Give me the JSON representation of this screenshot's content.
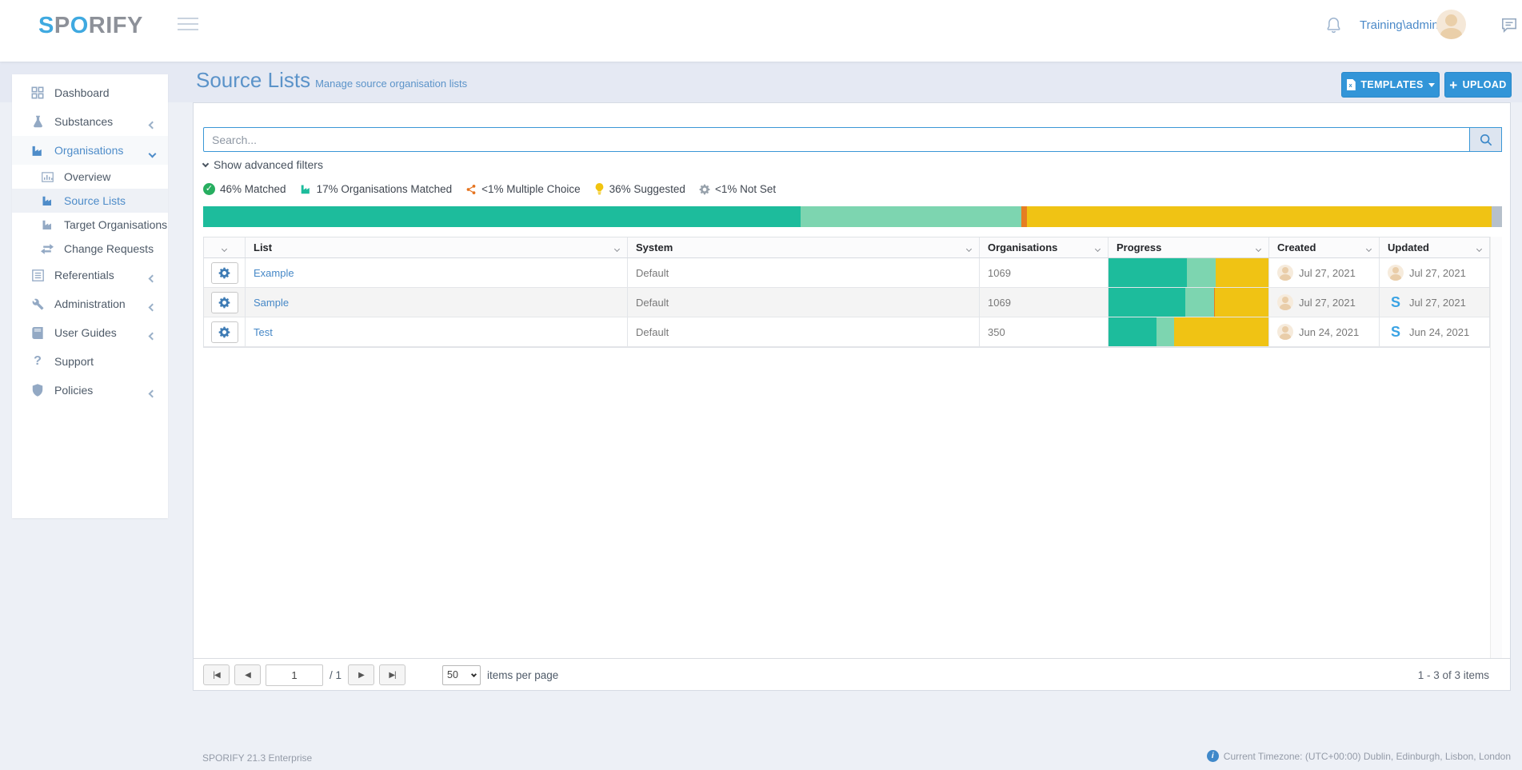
{
  "colors": {
    "accent_blue": "#3295d8",
    "link_blue": "#4a89c8",
    "matched_teal": "#1dbc9c",
    "orgs_matched_green": "#7dd5b0",
    "multiple_choice_orange": "#e67e22",
    "suggested_yellow": "#f0c314",
    "not_set_gray": "#b6c0cb"
  },
  "topbar": {
    "logo_s": "S",
    "logo_p": "P",
    "logo_o": "O",
    "logo_rest": "RIFY",
    "username": "Training\\admin"
  },
  "sidebar": {
    "items": [
      {
        "label": "Dashboard"
      },
      {
        "label": "Substances"
      },
      {
        "label": "Organisations"
      },
      {
        "label": "Overview"
      },
      {
        "label": "Source Lists"
      },
      {
        "label": "Target Organisations"
      },
      {
        "label": "Change Requests"
      },
      {
        "label": "Referentials"
      },
      {
        "label": "Administration"
      },
      {
        "label": "User Guides"
      },
      {
        "label": "Support"
      },
      {
        "label": "Policies"
      }
    ]
  },
  "page": {
    "title": "Source Lists",
    "subtitle": "Manage source organisation lists",
    "templates_button": "TEMPLATES",
    "upload_button": "UPLOAD",
    "upload_plus": "+"
  },
  "search": {
    "placeholder": "Search..."
  },
  "filters_toggle_label": "Show advanced filters",
  "stats": [
    {
      "icon": "check-circle-icon",
      "label": "46% Matched"
    },
    {
      "icon": "factory-icon",
      "label": "17% Organisations Matched"
    },
    {
      "icon": "share-icon",
      "label": "<1% Multiple Choice"
    },
    {
      "icon": "lightbulb-icon",
      "label": "36% Suggested"
    },
    {
      "icon": "gear-icon",
      "label": "<1% Not Set"
    }
  ],
  "summary_bar": {
    "segments": [
      {
        "name": "matched",
        "pct": 46
      },
      {
        "name": "orgs_matched",
        "pct": 17
      },
      {
        "name": "multiple_choice",
        "pct": 0.4
      },
      {
        "name": "suggested",
        "pct": 35.8
      },
      {
        "name": "not_set",
        "pct": 0.8
      }
    ]
  },
  "table": {
    "headers": [
      "List",
      "System",
      "Organisations",
      "Progress",
      "Created",
      "Updated"
    ],
    "rows": [
      {
        "list": "Example",
        "system": "Default",
        "organisations": "1069",
        "progress": {
          "matched": 49,
          "orgs_matched": 18,
          "multiple_choice": 0,
          "suggested": 33
        },
        "created": {
          "icon": "user",
          "date": "Jul 27, 2021"
        },
        "updated": {
          "icon": "user",
          "date": "Jul 27, 2021"
        }
      },
      {
        "list": "Sample",
        "system": "Default",
        "organisations": "1069",
        "progress": {
          "matched": 48,
          "orgs_matched": 18,
          "multiple_choice": 0.5,
          "suggested": 33.5
        },
        "created": {
          "icon": "user",
          "date": "Jul 27, 2021"
        },
        "updated": {
          "icon": "sporify",
          "date": "Jul 27, 2021"
        }
      },
      {
        "list": "Test",
        "system": "Default",
        "organisations": "350",
        "progress": {
          "matched": 30,
          "orgs_matched": 11,
          "multiple_choice": 0,
          "suggested": 59
        },
        "created": {
          "icon": "user",
          "date": "Jun 24, 2021"
        },
        "updated": {
          "icon": "sporify",
          "date": "Jun 24, 2021"
        }
      }
    ]
  },
  "pager": {
    "page": "1",
    "of": "/ 1",
    "page_size": "50",
    "items_per_page_label": "items per page",
    "range": "1 - 3 of 3 items"
  },
  "footer": {
    "version": "SPORIFY 21.3 Enterprise",
    "timezone": "Current Timezone: (UTC+00:00) Dublin, Edinburgh, Lisbon, London"
  }
}
